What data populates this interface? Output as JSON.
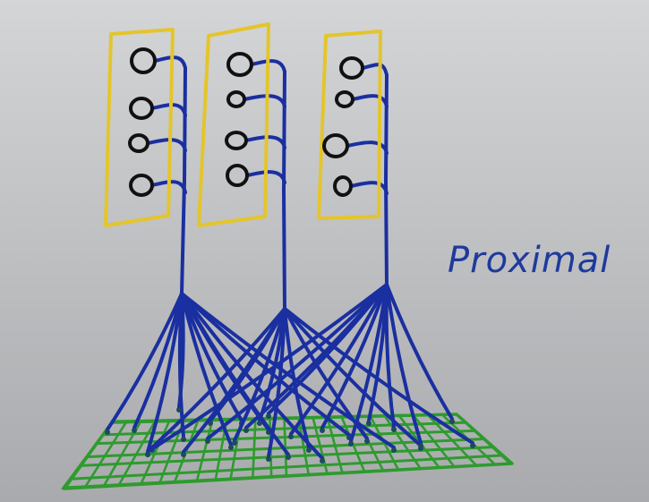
{
  "diagram": {
    "label": "Proximal",
    "colors": {
      "board_top": "#d4d5d7",
      "board_bottom": "#a9aaad",
      "wire": "#1a2fa0",
      "column_outline": "#e4c52a",
      "cell": "#111111",
      "input_grid": "#2e9b2e"
    },
    "columns": [
      {
        "cells": 4
      },
      {
        "cells": 4
      },
      {
        "cells": 4
      }
    ],
    "input_space": {
      "rows": 6,
      "cols": 24
    }
  }
}
